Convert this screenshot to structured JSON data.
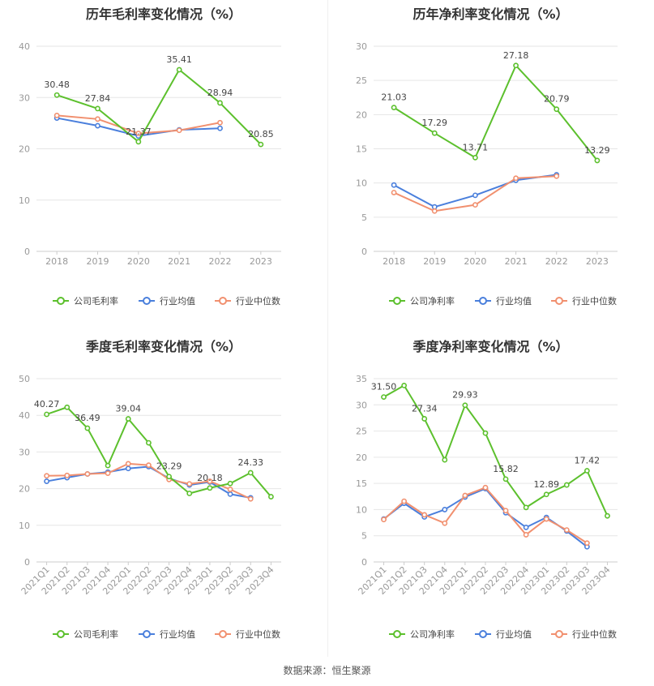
{
  "colors": {
    "company": "#5cc02d",
    "avg": "#4a7fdc",
    "median": "#f1906f",
    "grid": "#e6e6e6",
    "axis": "#999999",
    "text": "#666666"
  },
  "source_text": "数据来源：恒生聚源",
  "charts": [
    {
      "title": "历年毛利率变化情况（%）",
      "legend": [
        "公司毛利率",
        "行业均值",
        "行业中位数"
      ],
      "chart_data": {
        "type": "line",
        "categories": [
          "2018",
          "2019",
          "2020",
          "2021",
          "2022",
          "2023"
        ],
        "ylim": [
          0,
          40
        ],
        "yticks": [
          0,
          10,
          20,
          30,
          40
        ],
        "series": [
          {
            "name": "公司毛利率",
            "values": [
              30.48,
              27.84,
              21.37,
              35.41,
              28.94,
              20.85
            ],
            "labels": [
              "30.48",
              "27.84",
              "21.37",
              "35.41",
              "28.94",
              "20.85"
            ]
          },
          {
            "name": "行业均值",
            "values": [
              26.0,
              24.5,
              22.5,
              23.7,
              24.0,
              null
            ]
          },
          {
            "name": "行业中位数",
            "values": [
              26.5,
              25.8,
              23.0,
              23.6,
              25.1,
              null
            ]
          }
        ]
      }
    },
    {
      "title": "历年净利率变化情况（%）",
      "legend": [
        "公司净利率",
        "行业均值",
        "行业中位数"
      ],
      "chart_data": {
        "type": "line",
        "categories": [
          "2018",
          "2019",
          "2020",
          "2021",
          "2022",
          "2023"
        ],
        "ylim": [
          0,
          30
        ],
        "yticks": [
          0,
          5,
          10,
          15,
          20,
          25,
          30
        ],
        "series": [
          {
            "name": "公司净利率",
            "values": [
              21.03,
              17.29,
              13.71,
              27.18,
              20.79,
              13.29
            ],
            "labels": [
              "21.03",
              "17.29",
              "13.71",
              "27.18",
              "20.79",
              "13.29"
            ]
          },
          {
            "name": "行业均值",
            "values": [
              9.7,
              6.5,
              8.2,
              10.4,
              11.2,
              null
            ]
          },
          {
            "name": "行业中位数",
            "values": [
              8.6,
              5.9,
              6.8,
              10.7,
              11.0,
              null
            ]
          }
        ]
      }
    },
    {
      "title": "季度毛利率变化情况（%）",
      "legend": [
        "公司毛利率",
        "行业均值",
        "行业中位数"
      ],
      "chart_data": {
        "type": "line",
        "categories": [
          "2021Q1",
          "2021Q2",
          "2021Q3",
          "2021Q4",
          "2022Q1",
          "2022Q2",
          "2022Q3",
          "2022Q4",
          "2023Q1",
          "2023Q2",
          "2023Q3",
          "2023Q4"
        ],
        "ylim": [
          0,
          50
        ],
        "yticks": [
          0,
          10,
          20,
          30,
          40,
          50
        ],
        "series": [
          {
            "name": "公司毛利率",
            "values": [
              40.27,
              42.2,
              36.49,
              26.3,
              39.04,
              32.5,
              23.29,
              18.7,
              20.18,
              21.4,
              24.33,
              17.8
            ],
            "labels": [
              "40.27",
              "",
              "36.49",
              "",
              "39.04",
              "",
              "23.29",
              "",
              "20.18",
              "",
              "24.33",
              ""
            ]
          },
          {
            "name": "行业均值",
            "values": [
              22.0,
              23.0,
              24.0,
              24.5,
              25.5,
              26.0,
              22.8,
              21.0,
              21.8,
              18.5,
              17.5,
              null
            ]
          },
          {
            "name": "行业中位数",
            "values": [
              23.5,
              23.6,
              24.0,
              24.2,
              26.8,
              26.4,
              22.5,
              21.3,
              22.0,
              19.8,
              17.2,
              null
            ]
          }
        ]
      }
    },
    {
      "title": "季度净利率变化情况（%）",
      "legend": [
        "公司净利率",
        "行业均值",
        "行业中位数"
      ],
      "chart_data": {
        "type": "line",
        "categories": [
          "2021Q1",
          "2021Q2",
          "2021Q3",
          "2021Q4",
          "2022Q1",
          "2022Q2",
          "2022Q3",
          "2022Q4",
          "2023Q1",
          "2023Q2",
          "2023Q3",
          "2023Q4"
        ],
        "ylim": [
          0,
          35
        ],
        "yticks": [
          0,
          5,
          10,
          15,
          20,
          25,
          30,
          35
        ],
        "series": [
          {
            "name": "公司净利率",
            "values": [
              31.5,
              33.7,
              27.34,
              19.5,
              29.93,
              24.6,
              15.82,
              10.4,
              12.89,
              14.7,
              17.42,
              8.8
            ],
            "labels": [
              "31.50",
              "",
              "27.34",
              "",
              "29.93",
              "",
              "15.82",
              "",
              "12.89",
              "",
              "17.42",
              ""
            ]
          },
          {
            "name": "行业均值",
            "values": [
              8.2,
              11.2,
              8.6,
              10.0,
              12.4,
              14.0,
              9.4,
              6.6,
              8.5,
              5.9,
              2.9,
              null
            ]
          },
          {
            "name": "行业中位数",
            "values": [
              8.1,
              11.6,
              9.0,
              7.4,
              12.7,
              14.2,
              9.8,
              5.2,
              8.2,
              6.1,
              3.6,
              null
            ]
          }
        ]
      }
    }
  ]
}
